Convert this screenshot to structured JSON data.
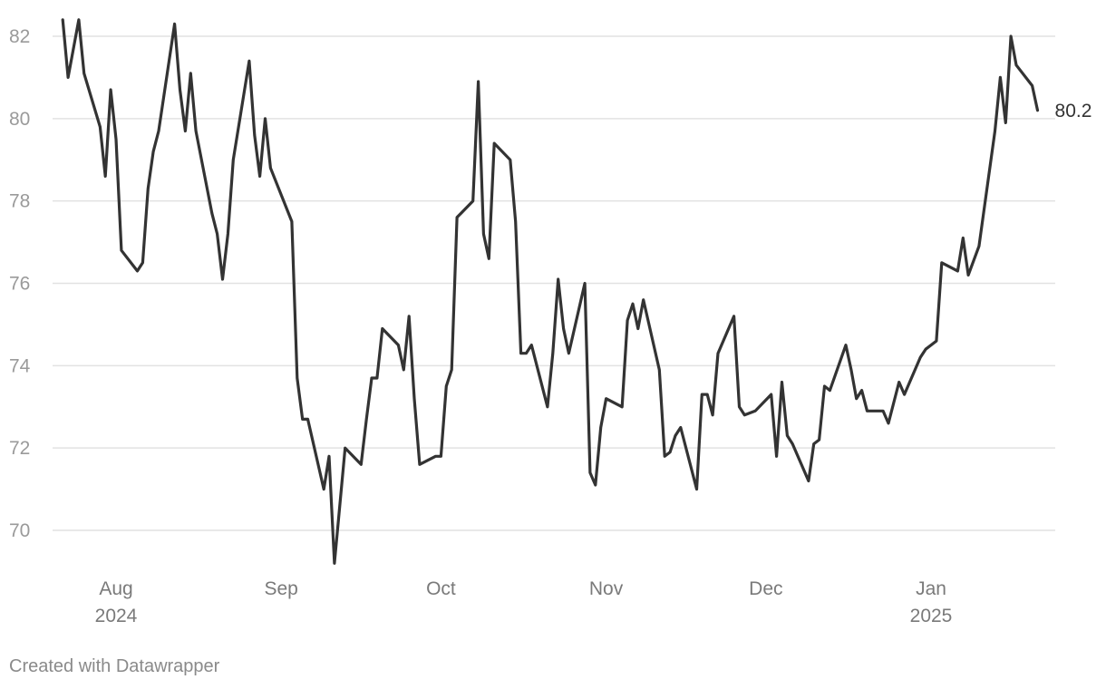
{
  "chart_data": {
    "type": "line",
    "title": "",
    "xlabel": "",
    "ylabel": "",
    "ylim": [
      69,
      82.5
    ],
    "yticks": [
      70,
      72,
      74,
      76,
      78,
      80,
      82
    ],
    "xticks": [
      {
        "date": "2024-08-01",
        "label": "Aug",
        "sublabel": "2024"
      },
      {
        "date": "2024-09-01",
        "label": "Sep",
        "sublabel": ""
      },
      {
        "date": "2024-10-01",
        "label": "Oct",
        "sublabel": ""
      },
      {
        "date": "2024-11-01",
        "label": "Nov",
        "sublabel": ""
      },
      {
        "date": "2024-12-01",
        "label": "Dec",
        "sublabel": ""
      },
      {
        "date": "2025-01-01",
        "label": "Jan",
        "sublabel": "2025"
      }
    ],
    "grid": true,
    "line_color": "#333333",
    "end_label": "80.2",
    "series": [
      {
        "x": [
          "2024-07-22",
          "2024-07-23",
          "2024-07-25",
          "2024-07-26",
          "2024-07-29",
          "2024-07-30",
          "2024-07-31",
          "2024-08-01",
          "2024-08-02",
          "2024-08-05",
          "2024-08-06",
          "2024-08-07",
          "2024-08-08",
          "2024-08-09",
          "2024-08-12",
          "2024-08-13",
          "2024-08-14",
          "2024-08-15",
          "2024-08-16",
          "2024-08-19",
          "2024-08-20",
          "2024-08-21",
          "2024-08-22",
          "2024-08-23",
          "2024-08-26",
          "2024-08-27",
          "2024-08-28",
          "2024-08-29",
          "2024-08-30",
          "2024-09-03",
          "2024-09-04",
          "2024-09-05",
          "2024-09-06",
          "2024-09-09",
          "2024-09-10",
          "2024-09-11",
          "2024-09-12",
          "2024-09-13",
          "2024-09-16",
          "2024-09-17",
          "2024-09-18",
          "2024-09-19",
          "2024-09-20",
          "2024-09-23",
          "2024-09-24",
          "2024-09-25",
          "2024-09-26",
          "2024-09-27",
          "2024-09-30",
          "2024-10-01",
          "2024-10-02",
          "2024-10-03",
          "2024-10-04",
          "2024-10-07",
          "2024-10-08",
          "2024-10-09",
          "2024-10-10",
          "2024-10-11",
          "2024-10-14",
          "2024-10-15",
          "2024-10-16",
          "2024-10-17",
          "2024-10-18",
          "2024-10-21",
          "2024-10-22",
          "2024-10-23",
          "2024-10-24",
          "2024-10-25",
          "2024-10-28",
          "2024-10-29",
          "2024-10-30",
          "2024-10-31",
          "2024-11-01",
          "2024-11-04",
          "2024-11-05",
          "2024-11-06",
          "2024-11-07",
          "2024-11-08",
          "2024-11-11",
          "2024-11-12",
          "2024-11-13",
          "2024-11-14",
          "2024-11-15",
          "2024-11-18",
          "2024-11-19",
          "2024-11-20",
          "2024-11-21",
          "2024-11-22",
          "2024-11-25",
          "2024-11-26",
          "2024-11-27",
          "2024-11-29",
          "2024-12-02",
          "2024-12-03",
          "2024-12-04",
          "2024-12-05",
          "2024-12-06",
          "2024-12-09",
          "2024-12-10",
          "2024-12-11",
          "2024-12-12",
          "2024-12-13",
          "2024-12-16",
          "2024-12-17",
          "2024-12-18",
          "2024-12-19",
          "2024-12-20",
          "2024-12-23",
          "2024-12-24",
          "2024-12-26",
          "2024-12-27",
          "2024-12-30",
          "2024-12-31",
          "2025-01-02",
          "2025-01-03",
          "2025-01-06",
          "2025-01-07",
          "2025-01-08",
          "2025-01-10",
          "2025-01-13",
          "2025-01-14",
          "2025-01-15",
          "2025-01-16",
          "2025-01-17",
          "2025-01-20",
          "2025-01-21"
        ],
        "values": [
          82.4,
          81.0,
          82.4,
          81.1,
          79.8,
          78.6,
          80.7,
          79.5,
          76.8,
          76.3,
          76.5,
          78.3,
          79.2,
          79.7,
          82.3,
          80.7,
          79.7,
          81.1,
          79.7,
          77.7,
          77.2,
          76.1,
          77.2,
          79.0,
          81.4,
          79.6,
          78.6,
          80.0,
          78.8,
          77.5,
          73.7,
          72.7,
          72.7,
          71.0,
          71.8,
          69.2,
          70.6,
          72.0,
          71.6,
          72.7,
          73.7,
          73.7,
          74.9,
          74.5,
          73.9,
          75.2,
          73.2,
          71.6,
          71.8,
          71.8,
          73.5,
          73.9,
          77.6,
          78.0,
          80.9,
          77.2,
          76.6,
          79.4,
          79.0,
          77.5,
          74.3,
          74.3,
          74.5,
          73.0,
          74.3,
          76.1,
          74.9,
          74.3,
          76.0,
          71.4,
          71.1,
          72.5,
          73.2,
          73.0,
          75.1,
          75.5,
          74.9,
          75.6,
          73.9,
          71.8,
          71.9,
          72.3,
          72.5,
          71.0,
          73.3,
          73.3,
          72.8,
          74.3,
          75.2,
          73.0,
          72.8,
          72.9,
          73.3,
          71.8,
          73.6,
          72.3,
          72.1,
          71.2,
          72.1,
          72.2,
          73.5,
          73.4,
          74.5,
          73.9,
          73.2,
          73.4,
          72.9,
          72.9,
          72.6,
          73.6,
          73.3,
          74.2,
          74.4,
          74.6,
          76.5,
          76.3,
          77.1,
          76.2,
          76.9,
          79.7,
          81.0,
          79.9,
          82.0,
          81.3,
          80.8,
          80.2
        ]
      }
    ]
  },
  "footer": {
    "credit": "Created with Datawrapper"
  }
}
